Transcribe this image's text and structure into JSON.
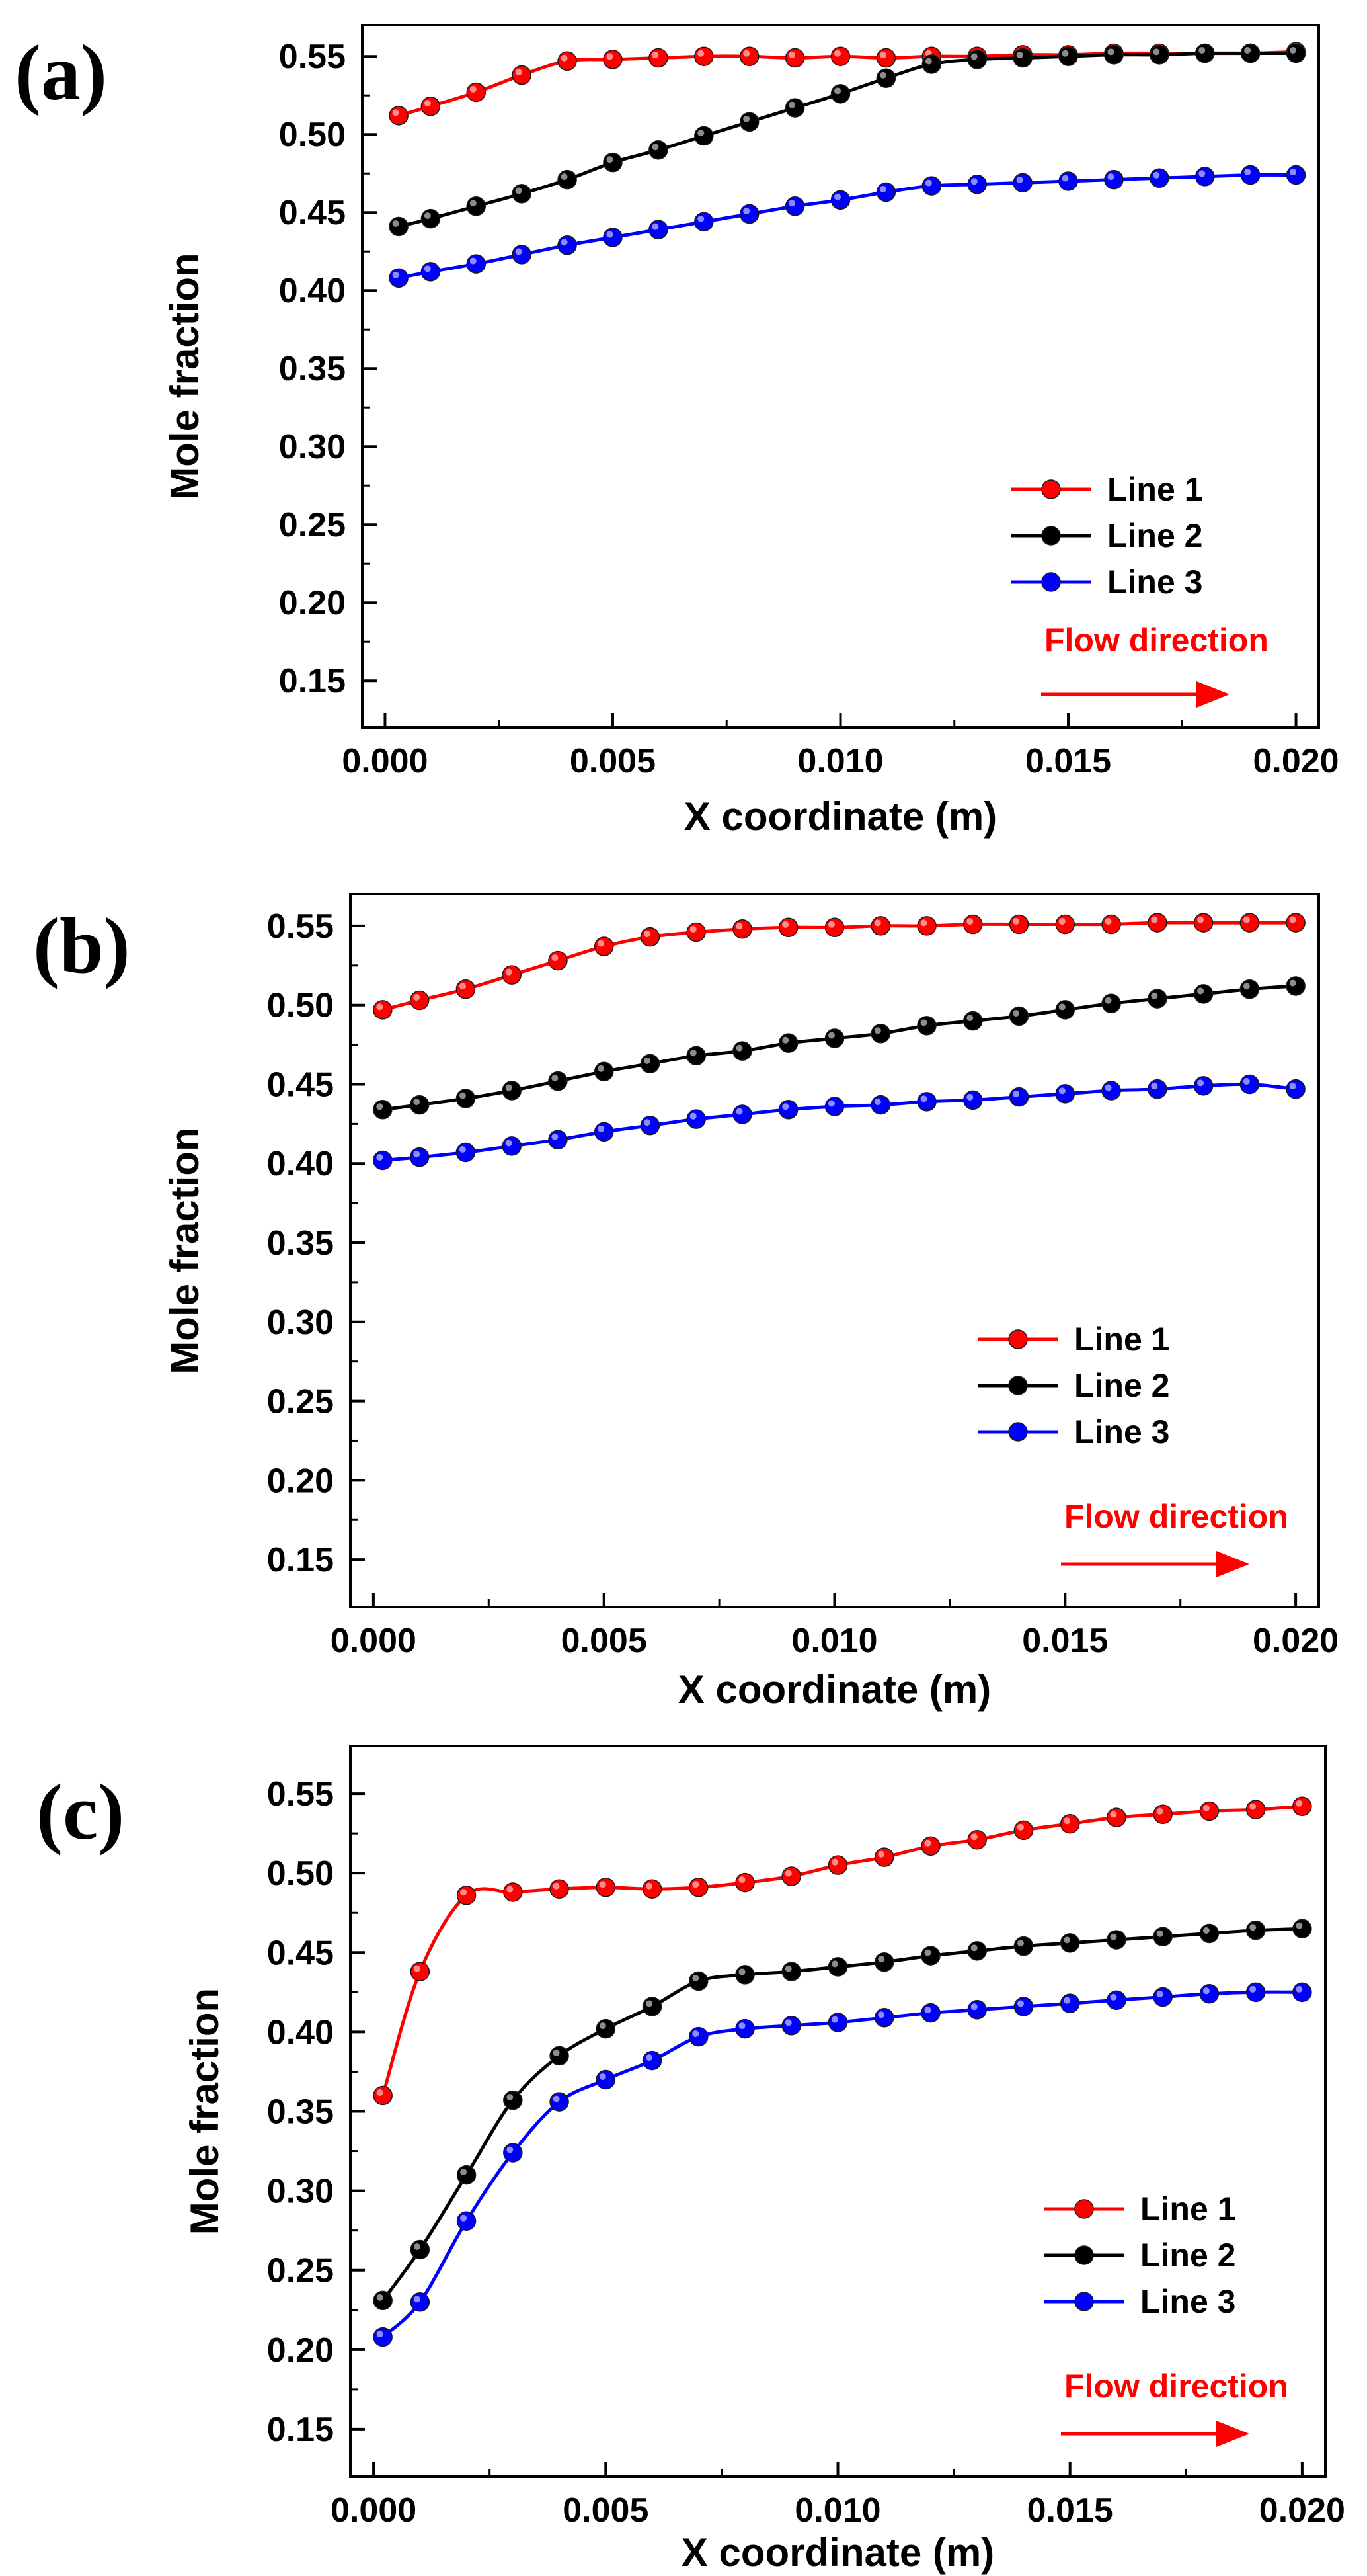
{
  "chart_data": [
    {
      "type": "line",
      "panel_label": "(a)",
      "xlabel": "X coordinate (m)",
      "ylabel": "Mole fraction",
      "xlim": [
        -0.0005,
        0.0205
      ],
      "ylim": [
        0.12,
        0.57
      ],
      "xticks": [
        0.0,
        0.005,
        0.01,
        0.015,
        0.02
      ],
      "xtick_labels": [
        "0.000",
        "0.005",
        "0.010",
        "0.015",
        "0.020"
      ],
      "yticks": [
        0.15,
        0.2,
        0.25,
        0.3,
        0.35,
        0.4,
        0.45,
        0.5,
        0.55
      ],
      "ytick_labels": [
        "0.15",
        "0.20",
        "0.25",
        "0.30",
        "0.35",
        "0.40",
        "0.45",
        "0.50",
        "0.55"
      ],
      "x": [
        0.0003,
        0.001,
        0.002,
        0.003,
        0.004,
        0.005,
        0.006,
        0.007,
        0.008,
        0.009,
        0.01,
        0.011,
        0.012,
        0.013,
        0.014,
        0.015,
        0.016,
        0.017,
        0.018,
        0.019,
        0.02
      ],
      "series": [
        {
          "name": "Line 1",
          "color": "#ff0000",
          "values": [
            0.512,
            0.518,
            0.527,
            0.538,
            0.547,
            0.548,
            0.549,
            0.55,
            0.55,
            0.549,
            0.55,
            0.549,
            0.55,
            0.55,
            0.551,
            0.551,
            0.552,
            0.552,
            0.552,
            0.552,
            0.553
          ]
        },
        {
          "name": "Line 2",
          "color": "#000000",
          "values": [
            0.441,
            0.446,
            0.454,
            0.462,
            0.471,
            0.482,
            0.49,
            0.499,
            0.508,
            0.517,
            0.526,
            0.536,
            0.545,
            0.548,
            0.549,
            0.55,
            0.551,
            0.551,
            0.552,
            0.552,
            0.552
          ]
        },
        {
          "name": "Line 3",
          "color": "#0000ff",
          "values": [
            0.408,
            0.412,
            0.417,
            0.423,
            0.429,
            0.434,
            0.439,
            0.444,
            0.449,
            0.454,
            0.458,
            0.463,
            0.467,
            0.468,
            0.469,
            0.47,
            0.471,
            0.472,
            0.473,
            0.474,
            0.474
          ]
        }
      ],
      "legend": [
        "Line 1",
        "Line 2",
        "Line 3"
      ],
      "annotation": "Flow direction",
      "annotation_color": "#ff0000"
    },
    {
      "type": "line",
      "panel_label": "(b)",
      "xlabel": "X coordinate (m)",
      "ylabel": "Mole fraction",
      "xlim": [
        -0.0005,
        0.0205
      ],
      "ylim": [
        0.12,
        0.57
      ],
      "xticks": [
        0.0,
        0.005,
        0.01,
        0.015,
        0.02
      ],
      "xtick_labels": [
        "0.000",
        "0.005",
        "0.010",
        "0.015",
        "0.020"
      ],
      "yticks": [
        0.15,
        0.2,
        0.25,
        0.3,
        0.35,
        0.4,
        0.45,
        0.5,
        0.55
      ],
      "ytick_labels": [
        "0.15",
        "0.20",
        "0.25",
        "0.30",
        "0.35",
        "0.40",
        "0.45",
        "0.50",
        "0.55"
      ],
      "x": [
        0.0002,
        0.001,
        0.002,
        0.003,
        0.004,
        0.005,
        0.006,
        0.007,
        0.008,
        0.009,
        0.01,
        0.011,
        0.012,
        0.013,
        0.014,
        0.015,
        0.016,
        0.017,
        0.018,
        0.019,
        0.02
      ],
      "series": [
        {
          "name": "Line 1",
          "color": "#ff0000",
          "values": [
            0.497,
            0.503,
            0.51,
            0.519,
            0.528,
            0.537,
            0.543,
            0.546,
            0.548,
            0.549,
            0.549,
            0.55,
            0.55,
            0.551,
            0.551,
            0.551,
            0.551,
            0.552,
            0.552,
            0.552,
            0.552
          ]
        },
        {
          "name": "Line 2",
          "color": "#000000",
          "values": [
            0.434,
            0.437,
            0.441,
            0.446,
            0.452,
            0.458,
            0.463,
            0.468,
            0.471,
            0.476,
            0.479,
            0.482,
            0.487,
            0.49,
            0.493,
            0.497,
            0.501,
            0.504,
            0.507,
            0.51,
            0.512
          ]
        },
        {
          "name": "Line 3",
          "color": "#0000ff",
          "values": [
            0.402,
            0.404,
            0.407,
            0.411,
            0.415,
            0.42,
            0.424,
            0.428,
            0.431,
            0.434,
            0.436,
            0.437,
            0.439,
            0.44,
            0.442,
            0.444,
            0.446,
            0.447,
            0.449,
            0.45,
            0.447
          ]
        }
      ],
      "legend": [
        "Line 1",
        "Line 2",
        "Line 3"
      ],
      "annotation": "Flow direction",
      "annotation_color": "#ff0000"
    },
    {
      "type": "line",
      "panel_label": "(c)",
      "xlabel": "X coordinate (m)",
      "ylabel": "Mole fraction",
      "xlim": [
        -0.0005,
        0.0205
      ],
      "ylim": [
        0.12,
        0.58
      ],
      "xticks": [
        0.0,
        0.005,
        0.01,
        0.015,
        0.02
      ],
      "xtick_labels": [
        "0.000",
        "0.005",
        "0.010",
        "0.015",
        "0.020"
      ],
      "yticks": [
        0.15,
        0.2,
        0.25,
        0.3,
        0.35,
        0.4,
        0.45,
        0.5,
        0.55
      ],
      "ytick_labels": [
        "0.15",
        "0.20",
        "0.25",
        "0.30",
        "0.35",
        "0.40",
        "0.45",
        "0.50",
        "0.55"
      ],
      "x": [
        0.0002,
        0.001,
        0.002,
        0.003,
        0.004,
        0.005,
        0.006,
        0.007,
        0.008,
        0.009,
        0.01,
        0.011,
        0.012,
        0.013,
        0.014,
        0.015,
        0.016,
        0.017,
        0.018,
        0.019,
        0.02
      ],
      "series": [
        {
          "name": "Line 1",
          "color": "#ff0000",
          "values": [
            0.36,
            0.438,
            0.486,
            0.488,
            0.49,
            0.491,
            0.49,
            0.491,
            0.494,
            0.498,
            0.505,
            0.51,
            0.517,
            0.521,
            0.527,
            0.531,
            0.535,
            0.537,
            0.539,
            0.54,
            0.542
          ]
        },
        {
          "name": "Line 2",
          "color": "#000000",
          "values": [
            0.231,
            0.263,
            0.31,
            0.357,
            0.385,
            0.402,
            0.416,
            0.432,
            0.436,
            0.438,
            0.441,
            0.444,
            0.448,
            0.451,
            0.454,
            0.456,
            0.458,
            0.46,
            0.462,
            0.464,
            0.465
          ]
        },
        {
          "name": "Line 3",
          "color": "#0000ff",
          "values": [
            0.208,
            0.23,
            0.281,
            0.324,
            0.356,
            0.37,
            0.382,
            0.397,
            0.402,
            0.404,
            0.406,
            0.409,
            0.412,
            0.414,
            0.416,
            0.418,
            0.42,
            0.422,
            0.424,
            0.425,
            0.425
          ]
        }
      ],
      "legend": [
        "Line 1",
        "Line 2",
        "Line 3"
      ],
      "annotation": "Flow direction",
      "annotation_color": "#ff0000"
    }
  ]
}
